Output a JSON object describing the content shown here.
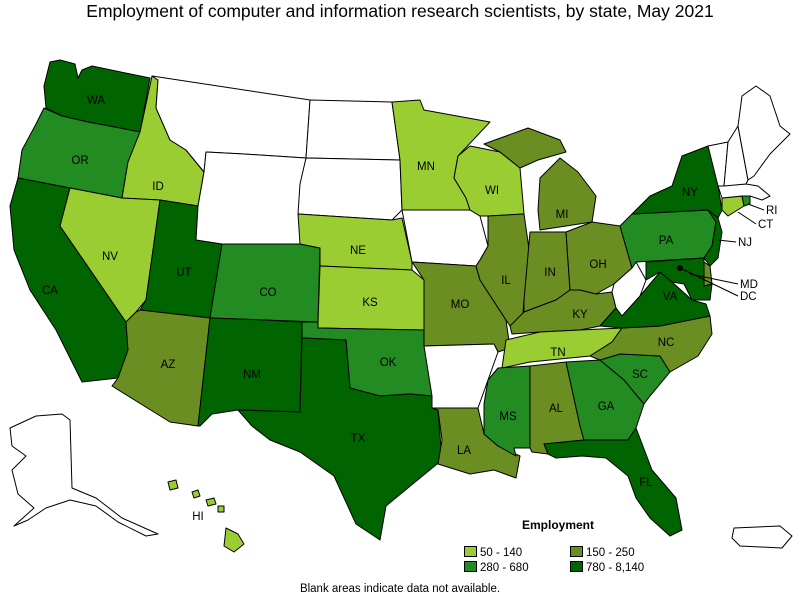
{
  "title": "Employment of computer and information research scientists, by state, May 2021",
  "footnote": "Blank areas indicate data not available.",
  "legend": {
    "title": "Employment",
    "items": [
      {
        "label": "50 - 140",
        "color": "#9acd32"
      },
      {
        "label": "150 - 250",
        "color": "#6b8e23"
      },
      {
        "label": "280 - 680",
        "color": "#228b22"
      },
      {
        "label": "780 - 8,140",
        "color": "#006400"
      }
    ]
  },
  "states": {
    "WA": {
      "label": "WA",
      "class": "780 - 8,140"
    },
    "OR": {
      "label": "OR",
      "class": "280 - 680"
    },
    "CA": {
      "label": "CA",
      "class": "780 - 8,140"
    },
    "ID": {
      "label": "ID",
      "class": "50 - 140"
    },
    "NV": {
      "label": "NV",
      "class": "50 - 140"
    },
    "UT": {
      "label": "UT",
      "class": "780 - 8,140"
    },
    "AZ": {
      "label": "AZ",
      "class": "150 - 250"
    },
    "MT": {
      "label": "",
      "class": "none"
    },
    "WY": {
      "label": "",
      "class": "none"
    },
    "CO": {
      "label": "CO",
      "class": "280 - 680"
    },
    "NM": {
      "label": "NM",
      "class": "780 - 8,140"
    },
    "ND": {
      "label": "",
      "class": "none"
    },
    "SD": {
      "label": "",
      "class": "none"
    },
    "NE": {
      "label": "NE",
      "class": "50 - 140"
    },
    "KS": {
      "label": "KS",
      "class": "50 - 140"
    },
    "OK": {
      "label": "OK",
      "class": "280 - 680"
    },
    "TX": {
      "label": "TX",
      "class": "780 - 8,140"
    },
    "MN": {
      "label": "MN",
      "class": "50 - 140"
    },
    "IA": {
      "label": "",
      "class": "none"
    },
    "MO": {
      "label": "MO",
      "class": "150 - 250"
    },
    "AR": {
      "label": "",
      "class": "none"
    },
    "LA": {
      "label": "LA",
      "class": "150 - 250"
    },
    "WI": {
      "label": "WI",
      "class": "50 - 140"
    },
    "IL": {
      "label": "IL",
      "class": "150 - 250"
    },
    "MI": {
      "label": "MI",
      "class": "150 - 250"
    },
    "IN": {
      "label": "IN",
      "class": "150 - 250"
    },
    "OH": {
      "label": "OH",
      "class": "150 - 250"
    },
    "KY": {
      "label": "KY",
      "class": "150 - 250"
    },
    "TN": {
      "label": "TN",
      "class": "50 - 140"
    },
    "MS": {
      "label": "MS",
      "class": "280 - 680"
    },
    "AL": {
      "label": "AL",
      "class": "150 - 250"
    },
    "GA": {
      "label": "GA",
      "class": "280 - 680"
    },
    "FL": {
      "label": "FL",
      "class": "780 - 8,140"
    },
    "SC": {
      "label": "SC",
      "class": "280 - 680"
    },
    "NC": {
      "label": "NC",
      "class": "150 - 250"
    },
    "VA": {
      "label": "VA",
      "class": "780 - 8,140"
    },
    "WV": {
      "label": "",
      "class": "none"
    },
    "PA": {
      "label": "PA",
      "class": "280 - 680"
    },
    "NY": {
      "label": "NY",
      "class": "780 - 8,140"
    },
    "NJ": {
      "label": "NJ",
      "class": "780 - 8,140"
    },
    "MD": {
      "label": "MD",
      "class": "780 - 8,140"
    },
    "DE": {
      "label": "",
      "class": "150 - 250"
    },
    "DC": {
      "label": "DC",
      "class": "780 - 8,140"
    },
    "CT": {
      "label": "CT",
      "class": "50 - 140"
    },
    "RI": {
      "label": "RI",
      "class": "280 - 680"
    },
    "MA": {
      "label": "",
      "class": "none"
    },
    "VT": {
      "label": "",
      "class": "none"
    },
    "NH": {
      "label": "",
      "class": "none"
    },
    "ME": {
      "label": "",
      "class": "none"
    },
    "AK": {
      "label": "",
      "class": "none"
    },
    "HI": {
      "label": "HI",
      "class": "50 - 140"
    },
    "PR": {
      "label": "",
      "class": "none"
    }
  }
}
